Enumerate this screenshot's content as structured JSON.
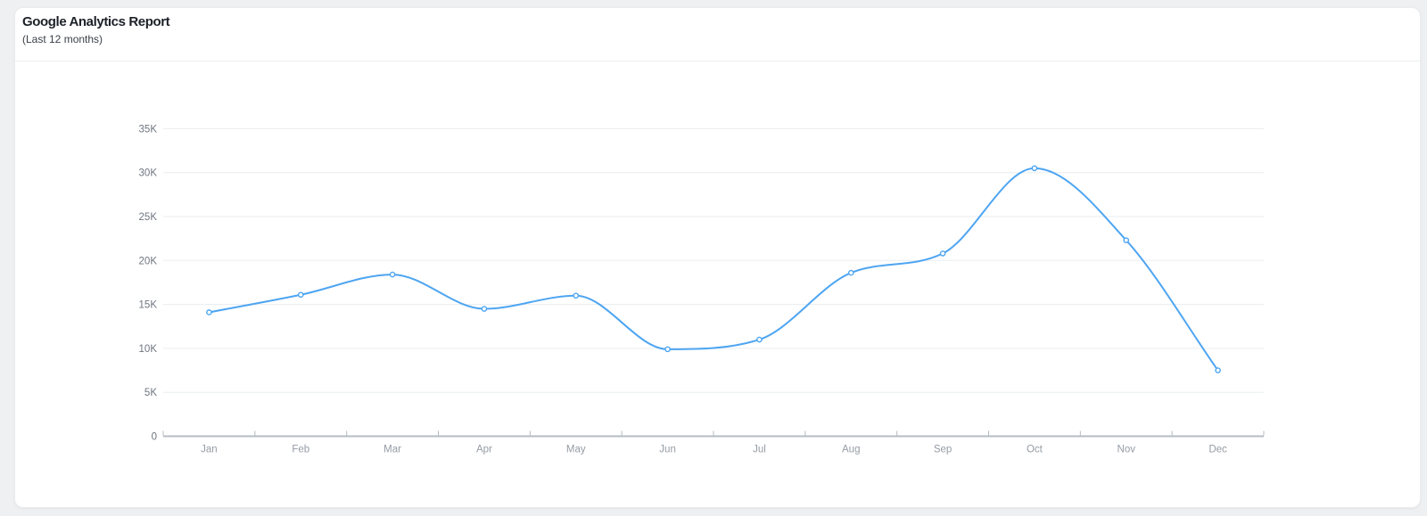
{
  "header": {
    "title": "Google Analytics Report",
    "subtitle": "(Last 12 months)"
  },
  "chart_data": {
    "type": "line",
    "title": "Google Analytics Report",
    "subtitle": "(Last 12 months)",
    "categories": [
      "Jan",
      "Feb",
      "Mar",
      "Apr",
      "May",
      "Jun",
      "Jul",
      "Aug",
      "Sep",
      "Oct",
      "Nov",
      "Dec"
    ],
    "values": [
      14100,
      16100,
      18400,
      14500,
      16000,
      9900,
      11000,
      18600,
      20800,
      30500,
      22300,
      7500
    ],
    "y_tick_labels": [
      "0",
      "5K",
      "10K",
      "15K",
      "20K",
      "25K",
      "30K",
      "35K"
    ],
    "y_tick_values": [
      0,
      5000,
      10000,
      15000,
      20000,
      25000,
      30000,
      35000
    ],
    "ylim": [
      0,
      35000
    ],
    "xlabel": "",
    "ylabel": "",
    "grid": true,
    "legend": false,
    "line_color": "#4ea5f1",
    "marker_style": "open-circle",
    "curve": "smooth-monotone"
  },
  "colors": {
    "grid": "#eaedf0",
    "axis": "#b6bcc3",
    "y_label": "#6f7680",
    "x_label": "#959ca5"
  }
}
